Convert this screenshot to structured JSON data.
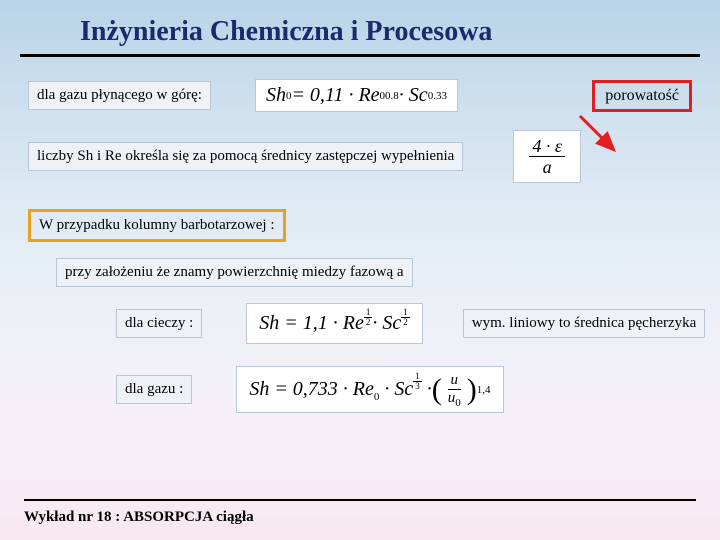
{
  "title": "Inżynieria Chemiczna i Procesowa",
  "line1_label": "dla gazu płynącego w górę:",
  "formula1_html": "Sh<sub>0</sub> = 0,11 · Re<sub>0</sub><sup>0.8</sup> · Sc<sup>0.33</sup>",
  "porosity_label": "porowatość",
  "line2_label": "liczby Sh i Re określa się za pomocą średnicy zastępczej wypełnienia",
  "formula2_frac": {
    "num": "4 · ε",
    "den": "a"
  },
  "line3_label": "W przypadku kolumny barbotarzowej :",
  "line4_label": "przy założeniu że znamy powierzchnię miedzy fazową a",
  "liquid_label": "dla cieczy :",
  "formula_liquid_html": "Sh = 1,1 · Re<span class='supfrac'><span class='num'>1</span><span class='den'>2</span></span> · Sc<span class='supfrac'><span class='num'>1</span><span class='den'>2</span></span>",
  "dim_label": "wym. liniowy to średnica pęcherzyka",
  "gas_label": "dla gazu :",
  "formula_gas_prefix_html": "Sh = 0,733 · Re<sub>0</sub> · Sc<span class='supfrac'><span class='num'>1</span><span class='den'>3</span></span> · ",
  "formula_gas_frac": {
    "num": "u",
    "den": "u<sub>0</sub>"
  },
  "formula_gas_exp": "1,4",
  "footer_text": "Wykład nr 18  : ABSORPCJA ciągła",
  "colors": {
    "title": "#1a2a6c",
    "red_border": "#e02020",
    "orange_border": "#e8a020",
    "arrow": "#e02020"
  }
}
